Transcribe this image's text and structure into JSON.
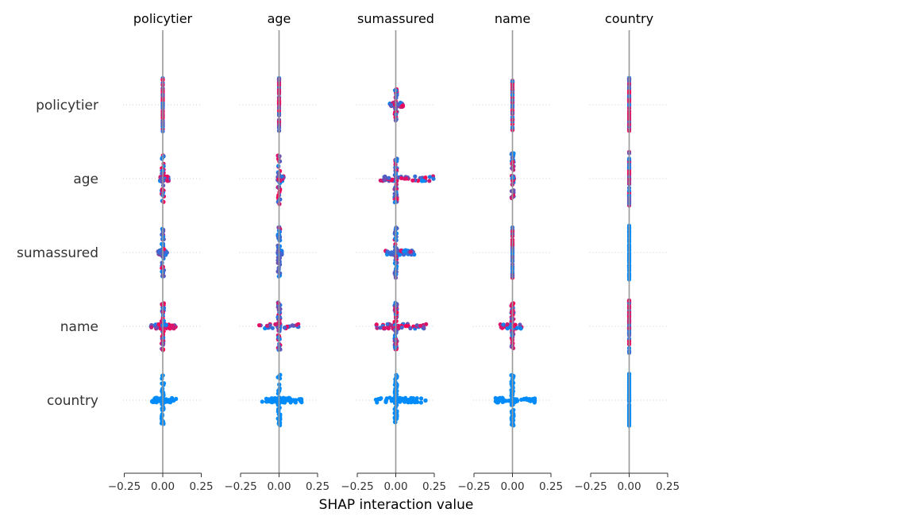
{
  "chart_data": {
    "type": "scatter",
    "subtype": "shap-interaction-beeswarm-grid",
    "features": [
      "policytier",
      "age",
      "sumassured",
      "name",
      "country"
    ],
    "xlabel": "SHAP interaction value",
    "xlim": [
      -0.3,
      0.3
    ],
    "xticks": [
      -0.25,
      0.0,
      0.25
    ],
    "xtick_labels": [
      "−0.25",
      "0.00",
      "0.25"
    ],
    "grid": false,
    "colors": {
      "low": "#008bfb",
      "high": "#ff0051",
      "zero_line": "#999999",
      "row_guide": "#cccccc"
    },
    "cells": [
      [
        {
          "row": "policytier",
          "col": "policytier",
          "spread": [
            0.0,
            0.0
          ],
          "vspread": 34,
          "pink": 0.6,
          "npts": 70
        },
        {
          "row": "policytier",
          "col": "age",
          "spread": [
            0.0,
            0.0
          ],
          "vspread": 34,
          "pink": 0.6,
          "npts": 70
        },
        {
          "row": "policytier",
          "col": "sumassured",
          "spread": [
            -0.04,
            0.05
          ],
          "vspread": 20,
          "pink": 0.45,
          "npts": 80
        },
        {
          "row": "policytier",
          "col": "name",
          "spread": [
            0.0,
            0.0
          ],
          "vspread": 34,
          "pink": 0.5,
          "npts": 70
        },
        {
          "row": "policytier",
          "col": "country",
          "spread": [
            0.0,
            0.0
          ],
          "vspread": 34,
          "pink": 0.6,
          "npts": 70
        }
      ],
      [
        {
          "row": "age",
          "col": "policytier",
          "spread": [
            -0.02,
            0.04
          ],
          "vspread": 30,
          "pink": 0.5,
          "npts": 70
        },
        {
          "row": "age",
          "col": "age",
          "spread": [
            -0.01,
            0.03
          ],
          "vspread": 32,
          "pink": 0.5,
          "npts": 70
        },
        {
          "row": "age",
          "col": "sumassured",
          "spread": [
            -0.1,
            0.25
          ],
          "vspread": 32,
          "pink": 0.4,
          "npts": 100
        },
        {
          "row": "age",
          "col": "name",
          "spread": [
            0.0,
            0.01
          ],
          "vspread": 32,
          "pink": 0.4,
          "npts": 70
        },
        {
          "row": "age",
          "col": "country",
          "spread": [
            0.0,
            0.0
          ],
          "vspread": 34,
          "pink": 0.5,
          "npts": 70
        }
      ],
      [
        {
          "row": "sumassured",
          "col": "policytier",
          "spread": [
            -0.03,
            0.03
          ],
          "vspread": 30,
          "pink": 0.2,
          "npts": 70
        },
        {
          "row": "sumassured",
          "col": "age",
          "spread": [
            -0.01,
            0.02
          ],
          "vspread": 32,
          "pink": 0.05,
          "npts": 70
        },
        {
          "row": "sumassured",
          "col": "sumassured",
          "spread": [
            -0.07,
            0.12
          ],
          "vspread": 32,
          "pink": 0.1,
          "npts": 100
        },
        {
          "row": "sumassured",
          "col": "name",
          "spread": [
            0.0,
            0.0
          ],
          "vspread": 32,
          "pink": 0.3,
          "npts": 60
        },
        {
          "row": "sumassured",
          "col": "country",
          "spread": [
            0.0,
            0.0
          ],
          "vspread": 34,
          "pink": 0.0,
          "npts": 70
        }
      ],
      [
        {
          "row": "name",
          "col": "policytier",
          "spread": [
            -0.08,
            0.09
          ],
          "vspread": 30,
          "pink": 0.5,
          "npts": 90
        },
        {
          "row": "name",
          "col": "age",
          "spread": [
            -0.13,
            0.13
          ],
          "vspread": 30,
          "pink": 0.45,
          "npts": 100
        },
        {
          "row": "name",
          "col": "sumassured",
          "spread": [
            -0.13,
            0.2
          ],
          "vspread": 30,
          "pink": 0.5,
          "npts": 110
        },
        {
          "row": "name",
          "col": "name",
          "spread": [
            -0.08,
            0.06
          ],
          "vspread": 30,
          "pink": 0.5,
          "npts": 90
        },
        {
          "row": "name",
          "col": "country",
          "spread": [
            0.0,
            0.0
          ],
          "vspread": 34,
          "pink": 0.6,
          "npts": 70
        }
      ],
      [
        {
          "row": "country",
          "col": "policytier",
          "spread": [
            -0.08,
            0.09
          ],
          "vspread": 32,
          "pink": 0.0,
          "npts": 90
        },
        {
          "row": "country",
          "col": "age",
          "spread": [
            -0.11,
            0.15
          ],
          "vspread": 32,
          "pink": 0.0,
          "npts": 100
        },
        {
          "row": "country",
          "col": "sumassured",
          "spread": [
            -0.13,
            0.2
          ],
          "vspread": 32,
          "pink": 0.0,
          "npts": 110
        },
        {
          "row": "country",
          "col": "name",
          "spread": [
            -0.11,
            0.15
          ],
          "vspread": 32,
          "pink": 0.0,
          "npts": 100
        },
        {
          "row": "country",
          "col": "country",
          "spread": [
            0.0,
            0.0
          ],
          "vspread": 34,
          "pink": 0.0,
          "npts": 80
        }
      ]
    ]
  }
}
